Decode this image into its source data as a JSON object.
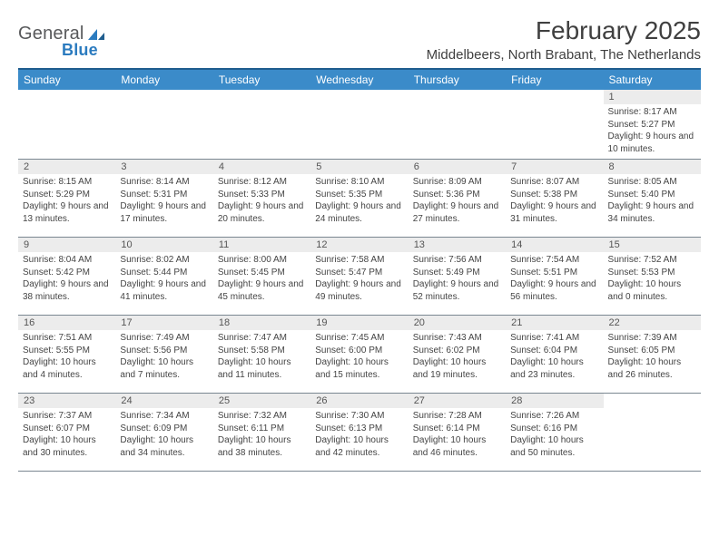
{
  "brand": {
    "name_part1": "General",
    "name_part2": "Blue",
    "accent": "#2b7bbf",
    "text_color": "#58595b"
  },
  "title": "February 2025",
  "location": "Middelbeers, North Brabant, The Netherlands",
  "colors": {
    "header_bg": "#3b8bc9",
    "header_border_top": "#1f5d8e",
    "header_text": "#ffffff",
    "daynum_bg": "#ececec",
    "row_border": "#7a8791",
    "body_text": "#444444"
  },
  "day_headers": [
    "Sunday",
    "Monday",
    "Tuesday",
    "Wednesday",
    "Thursday",
    "Friday",
    "Saturday"
  ],
  "weeks": [
    [
      {
        "n": "",
        "sunrise": "",
        "sunset": "",
        "daylight": "",
        "empty": true
      },
      {
        "n": "",
        "sunrise": "",
        "sunset": "",
        "daylight": "",
        "empty": true
      },
      {
        "n": "",
        "sunrise": "",
        "sunset": "",
        "daylight": "",
        "empty": true
      },
      {
        "n": "",
        "sunrise": "",
        "sunset": "",
        "daylight": "",
        "empty": true
      },
      {
        "n": "",
        "sunrise": "",
        "sunset": "",
        "daylight": "",
        "empty": true
      },
      {
        "n": "",
        "sunrise": "",
        "sunset": "",
        "daylight": "",
        "empty": true
      },
      {
        "n": "1",
        "sunrise": "Sunrise: 8:17 AM",
        "sunset": "Sunset: 5:27 PM",
        "daylight": "Daylight: 9 hours and 10 minutes."
      }
    ],
    [
      {
        "n": "2",
        "sunrise": "Sunrise: 8:15 AM",
        "sunset": "Sunset: 5:29 PM",
        "daylight": "Daylight: 9 hours and 13 minutes."
      },
      {
        "n": "3",
        "sunrise": "Sunrise: 8:14 AM",
        "sunset": "Sunset: 5:31 PM",
        "daylight": "Daylight: 9 hours and 17 minutes."
      },
      {
        "n": "4",
        "sunrise": "Sunrise: 8:12 AM",
        "sunset": "Sunset: 5:33 PM",
        "daylight": "Daylight: 9 hours and 20 minutes."
      },
      {
        "n": "5",
        "sunrise": "Sunrise: 8:10 AM",
        "sunset": "Sunset: 5:35 PM",
        "daylight": "Daylight: 9 hours and 24 minutes."
      },
      {
        "n": "6",
        "sunrise": "Sunrise: 8:09 AM",
        "sunset": "Sunset: 5:36 PM",
        "daylight": "Daylight: 9 hours and 27 minutes."
      },
      {
        "n": "7",
        "sunrise": "Sunrise: 8:07 AM",
        "sunset": "Sunset: 5:38 PM",
        "daylight": "Daylight: 9 hours and 31 minutes."
      },
      {
        "n": "8",
        "sunrise": "Sunrise: 8:05 AM",
        "sunset": "Sunset: 5:40 PM",
        "daylight": "Daylight: 9 hours and 34 minutes."
      }
    ],
    [
      {
        "n": "9",
        "sunrise": "Sunrise: 8:04 AM",
        "sunset": "Sunset: 5:42 PM",
        "daylight": "Daylight: 9 hours and 38 minutes."
      },
      {
        "n": "10",
        "sunrise": "Sunrise: 8:02 AM",
        "sunset": "Sunset: 5:44 PM",
        "daylight": "Daylight: 9 hours and 41 minutes."
      },
      {
        "n": "11",
        "sunrise": "Sunrise: 8:00 AM",
        "sunset": "Sunset: 5:45 PM",
        "daylight": "Daylight: 9 hours and 45 minutes."
      },
      {
        "n": "12",
        "sunrise": "Sunrise: 7:58 AM",
        "sunset": "Sunset: 5:47 PM",
        "daylight": "Daylight: 9 hours and 49 minutes."
      },
      {
        "n": "13",
        "sunrise": "Sunrise: 7:56 AM",
        "sunset": "Sunset: 5:49 PM",
        "daylight": "Daylight: 9 hours and 52 minutes."
      },
      {
        "n": "14",
        "sunrise": "Sunrise: 7:54 AM",
        "sunset": "Sunset: 5:51 PM",
        "daylight": "Daylight: 9 hours and 56 minutes."
      },
      {
        "n": "15",
        "sunrise": "Sunrise: 7:52 AM",
        "sunset": "Sunset: 5:53 PM",
        "daylight": "Daylight: 10 hours and 0 minutes."
      }
    ],
    [
      {
        "n": "16",
        "sunrise": "Sunrise: 7:51 AM",
        "sunset": "Sunset: 5:55 PM",
        "daylight": "Daylight: 10 hours and 4 minutes."
      },
      {
        "n": "17",
        "sunrise": "Sunrise: 7:49 AM",
        "sunset": "Sunset: 5:56 PM",
        "daylight": "Daylight: 10 hours and 7 minutes."
      },
      {
        "n": "18",
        "sunrise": "Sunrise: 7:47 AM",
        "sunset": "Sunset: 5:58 PM",
        "daylight": "Daylight: 10 hours and 11 minutes."
      },
      {
        "n": "19",
        "sunrise": "Sunrise: 7:45 AM",
        "sunset": "Sunset: 6:00 PM",
        "daylight": "Daylight: 10 hours and 15 minutes."
      },
      {
        "n": "20",
        "sunrise": "Sunrise: 7:43 AM",
        "sunset": "Sunset: 6:02 PM",
        "daylight": "Daylight: 10 hours and 19 minutes."
      },
      {
        "n": "21",
        "sunrise": "Sunrise: 7:41 AM",
        "sunset": "Sunset: 6:04 PM",
        "daylight": "Daylight: 10 hours and 23 minutes."
      },
      {
        "n": "22",
        "sunrise": "Sunrise: 7:39 AM",
        "sunset": "Sunset: 6:05 PM",
        "daylight": "Daylight: 10 hours and 26 minutes."
      }
    ],
    [
      {
        "n": "23",
        "sunrise": "Sunrise: 7:37 AM",
        "sunset": "Sunset: 6:07 PM",
        "daylight": "Daylight: 10 hours and 30 minutes."
      },
      {
        "n": "24",
        "sunrise": "Sunrise: 7:34 AM",
        "sunset": "Sunset: 6:09 PM",
        "daylight": "Daylight: 10 hours and 34 minutes."
      },
      {
        "n": "25",
        "sunrise": "Sunrise: 7:32 AM",
        "sunset": "Sunset: 6:11 PM",
        "daylight": "Daylight: 10 hours and 38 minutes."
      },
      {
        "n": "26",
        "sunrise": "Sunrise: 7:30 AM",
        "sunset": "Sunset: 6:13 PM",
        "daylight": "Daylight: 10 hours and 42 minutes."
      },
      {
        "n": "27",
        "sunrise": "Sunrise: 7:28 AM",
        "sunset": "Sunset: 6:14 PM",
        "daylight": "Daylight: 10 hours and 46 minutes."
      },
      {
        "n": "28",
        "sunrise": "Sunrise: 7:26 AM",
        "sunset": "Sunset: 6:16 PM",
        "daylight": "Daylight: 10 hours and 50 minutes."
      },
      {
        "n": "",
        "sunrise": "",
        "sunset": "",
        "daylight": "",
        "empty": true
      }
    ]
  ]
}
